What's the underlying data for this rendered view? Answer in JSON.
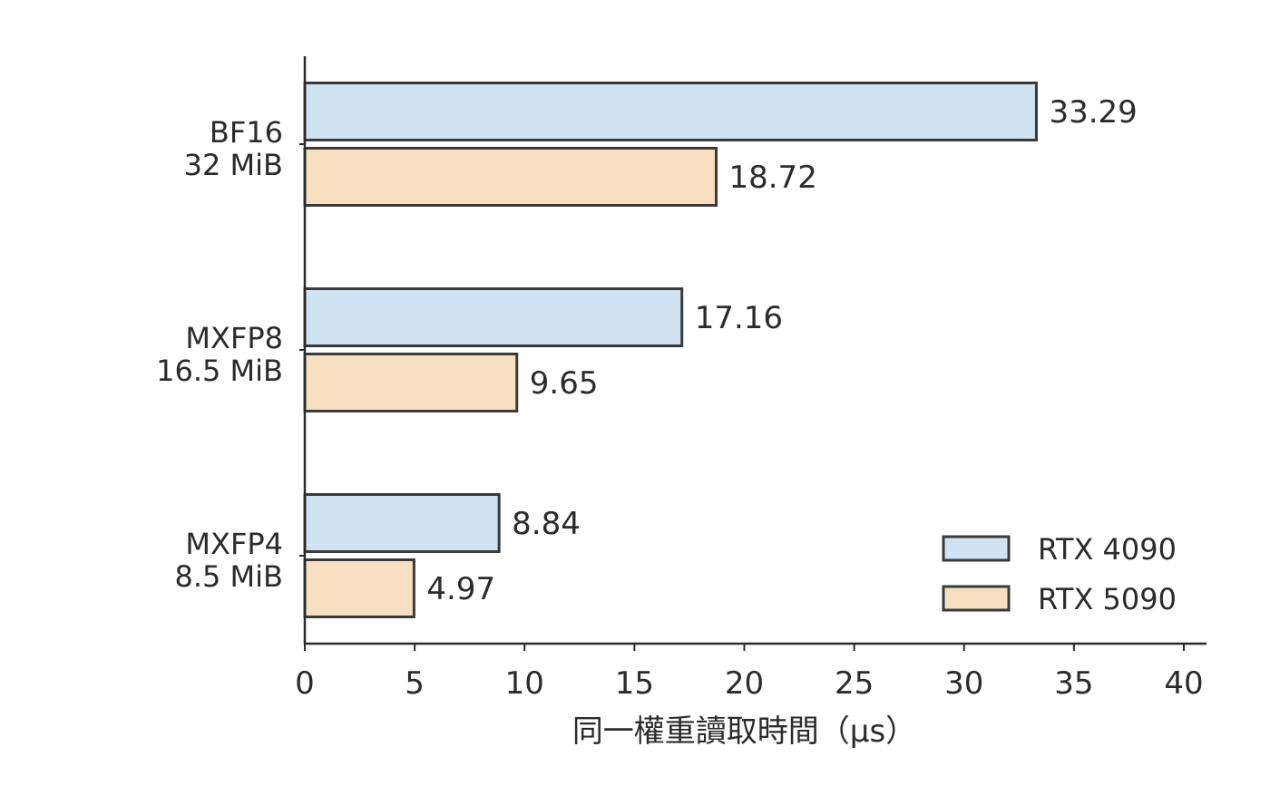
{
  "chart_data": {
    "type": "bar",
    "orientation": "horizontal",
    "categories": [
      [
        "BF16",
        "32 MiB"
      ],
      [
        "MXFP8",
        "16.5 MiB"
      ],
      [
        "MXFP4",
        "8.5 MiB"
      ]
    ],
    "series": [
      {
        "name": "RTX 4090",
        "values": [
          33.29,
          17.16,
          8.84
        ],
        "value_labels": [
          "33.29",
          "17.16",
          "8.84"
        ],
        "color": "#cfe3f3"
      },
      {
        "name": "RTX 5090",
        "values": [
          18.72,
          9.65,
          4.97
        ],
        "value_labels": [
          "18.72",
          "9.65",
          "4.97"
        ],
        "color": "#f8dfc1"
      }
    ],
    "bar_edge_color": "#3a3a3a",
    "xlabel": "同一權重讀取時間（μs）",
    "ylabel": "",
    "title": "",
    "xlim": [
      0,
      40
    ],
    "xticks": [
      0,
      5,
      10,
      15,
      20,
      25,
      30,
      35,
      40
    ],
    "grid": false,
    "legend_position": "bottom-right"
  }
}
